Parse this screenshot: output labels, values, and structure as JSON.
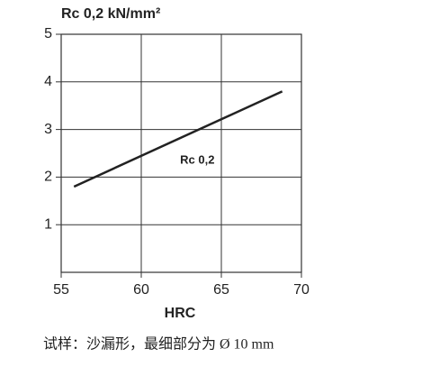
{
  "chart_data": {
    "type": "line",
    "ylabel": "Rc 0,2 kN/mm²",
    "xlabel": "HRC",
    "caption": "试样：沙漏形，最细部分为 Ø 10 mm",
    "annotation": {
      "text": "Rc 0,2",
      "x": 63.5,
      "y": 2.35
    },
    "x": [
      55.8,
      68.8
    ],
    "series": [
      {
        "values": [
          1.8,
          3.8
        ],
        "color": "#222222"
      }
    ],
    "xlim": [
      55,
      70
    ],
    "xticks": [
      55,
      60,
      65,
      70
    ],
    "ylim": [
      0,
      5
    ],
    "yticks": [
      1,
      2,
      3,
      4,
      5
    ],
    "grid": true
  }
}
